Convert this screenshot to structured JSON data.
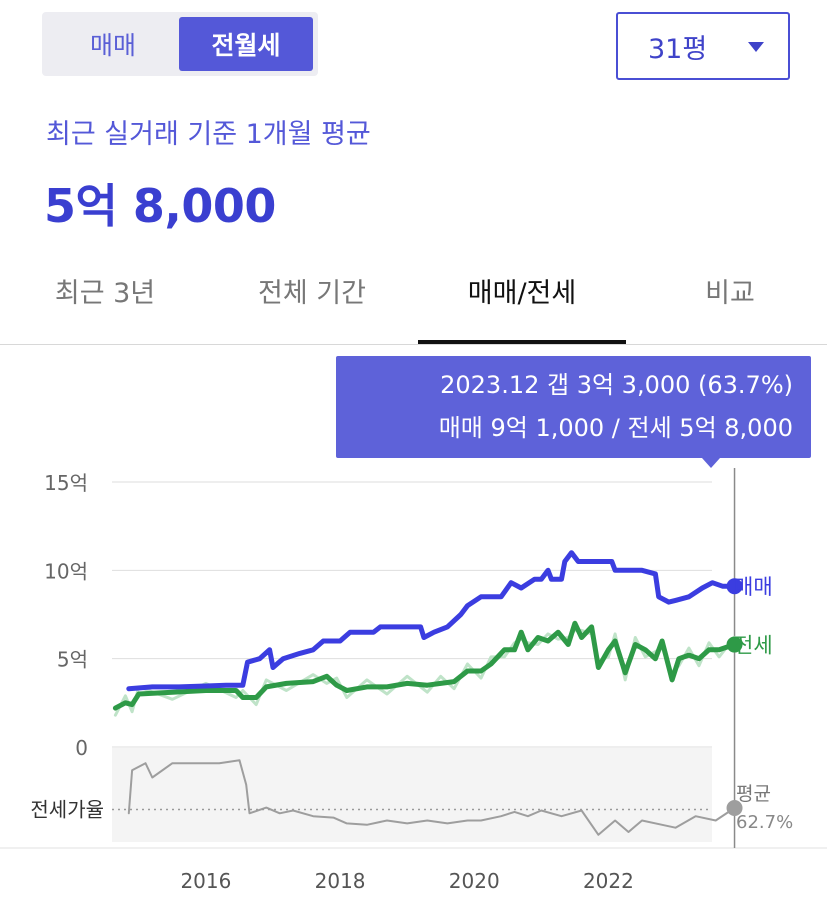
{
  "toggle": {
    "sale_label": "매매",
    "rent_label": "전월세",
    "active": "rent"
  },
  "size_select": {
    "value": "31평"
  },
  "summary": {
    "subtitle": "최근 실거래 기준 1개월 평균",
    "price": "5억 8,000"
  },
  "tabs": [
    {
      "label": "최근 3년",
      "active": false
    },
    {
      "label": "전체 기간",
      "active": false
    },
    {
      "label": "매매/전세",
      "active": true
    },
    {
      "label": "비교",
      "active": false
    }
  ],
  "tooltip": {
    "line1": "2023.12  갭 3억 3,000 (63.7%)",
    "line2": "매매 9억 1,000 / 전세 5억 8,000"
  },
  "colors": {
    "sale": "#3b3de0",
    "jeonse": "#2e9a47",
    "ratio": "#9e9e9e",
    "accent": "#5458d8"
  },
  "chart_data": {
    "type": "line",
    "x_unit": "year",
    "xlim": [
      2014.6,
      2024.2
    ],
    "ylim": [
      0,
      15
    ],
    "y_unit": "억",
    "y_ticks": [
      "0",
      "5억",
      "10억",
      "15억"
    ],
    "y_tick_values": [
      0,
      5,
      10,
      15
    ],
    "x_ticks": [
      "2016",
      "2018",
      "2020",
      "2022"
    ],
    "x_tick_values": [
      2016,
      2018,
      2020,
      2022
    ],
    "series": [
      {
        "name": "매매",
        "color": "#3b3de0",
        "points": [
          [
            2014.85,
            3.3
          ],
          [
            2015.2,
            3.4
          ],
          [
            2015.6,
            3.4
          ],
          [
            2016.0,
            3.45
          ],
          [
            2016.3,
            3.5
          ],
          [
            2016.55,
            3.5
          ],
          [
            2016.62,
            4.8
          ],
          [
            2016.8,
            5.0
          ],
          [
            2016.95,
            5.5
          ],
          [
            2017.0,
            4.5
          ],
          [
            2017.15,
            5.0
          ],
          [
            2017.4,
            5.3
          ],
          [
            2017.6,
            5.5
          ],
          [
            2017.75,
            6.0
          ],
          [
            2018.0,
            6.0
          ],
          [
            2018.15,
            6.5
          ],
          [
            2018.5,
            6.5
          ],
          [
            2018.6,
            6.8
          ],
          [
            2019.0,
            6.8
          ],
          [
            2019.2,
            6.8
          ],
          [
            2019.25,
            6.2
          ],
          [
            2019.4,
            6.5
          ],
          [
            2019.6,
            6.8
          ],
          [
            2019.8,
            7.5
          ],
          [
            2019.9,
            8.0
          ],
          [
            2020.1,
            8.5
          ],
          [
            2020.4,
            8.5
          ],
          [
            2020.55,
            9.3
          ],
          [
            2020.7,
            9.0
          ],
          [
            2020.9,
            9.5
          ],
          [
            2021.0,
            9.5
          ],
          [
            2021.1,
            10.0
          ],
          [
            2021.15,
            9.5
          ],
          [
            2021.3,
            9.5
          ],
          [
            2021.35,
            10.5
          ],
          [
            2021.45,
            11.0
          ],
          [
            2021.55,
            10.5
          ],
          [
            2021.8,
            10.5
          ],
          [
            2022.05,
            10.5
          ],
          [
            2022.1,
            10.0
          ],
          [
            2022.5,
            10.0
          ],
          [
            2022.7,
            9.8
          ],
          [
            2022.75,
            8.5
          ],
          [
            2022.9,
            8.2
          ],
          [
            2023.0,
            8.3
          ],
          [
            2023.2,
            8.5
          ],
          [
            2023.4,
            9.0
          ],
          [
            2023.55,
            9.3
          ],
          [
            2023.7,
            9.1
          ],
          [
            2023.88,
            9.1
          ]
        ],
        "last_label": "매매"
      },
      {
        "name": "전세",
        "color": "#2e9a47",
        "points": [
          [
            2014.65,
            2.2
          ],
          [
            2014.8,
            2.5
          ],
          [
            2014.9,
            2.4
          ],
          [
            2015.0,
            3.0
          ],
          [
            2015.5,
            3.1
          ],
          [
            2016.0,
            3.2
          ],
          [
            2016.45,
            3.2
          ],
          [
            2016.55,
            2.8
          ],
          [
            2016.75,
            2.8
          ],
          [
            2016.9,
            3.4
          ],
          [
            2017.2,
            3.6
          ],
          [
            2017.6,
            3.7
          ],
          [
            2017.8,
            4.0
          ],
          [
            2017.95,
            3.5
          ],
          [
            2018.1,
            3.2
          ],
          [
            2018.4,
            3.4
          ],
          [
            2018.7,
            3.4
          ],
          [
            2019.0,
            3.6
          ],
          [
            2019.3,
            3.5
          ],
          [
            2019.5,
            3.6
          ],
          [
            2019.7,
            3.7
          ],
          [
            2019.9,
            4.3
          ],
          [
            2020.1,
            4.3
          ],
          [
            2020.25,
            4.7
          ],
          [
            2020.45,
            5.5
          ],
          [
            2020.6,
            5.5
          ],
          [
            2020.7,
            6.5
          ],
          [
            2020.8,
            5.5
          ],
          [
            2020.95,
            6.2
          ],
          [
            2021.1,
            6.0
          ],
          [
            2021.25,
            6.5
          ],
          [
            2021.4,
            5.8
          ],
          [
            2021.5,
            7.0
          ],
          [
            2021.6,
            6.2
          ],
          [
            2021.75,
            6.8
          ],
          [
            2021.85,
            4.5
          ],
          [
            2022.0,
            5.5
          ],
          [
            2022.1,
            6.0
          ],
          [
            2022.25,
            4.2
          ],
          [
            2022.4,
            5.8
          ],
          [
            2022.55,
            5.5
          ],
          [
            2022.7,
            5.0
          ],
          [
            2022.8,
            6.0
          ],
          [
            2022.95,
            3.8
          ],
          [
            2023.05,
            5.0
          ],
          [
            2023.2,
            5.2
          ],
          [
            2023.35,
            5.0
          ],
          [
            2023.5,
            5.5
          ],
          [
            2023.65,
            5.5
          ],
          [
            2023.88,
            5.8
          ]
        ],
        "last_label": "전세"
      },
      {
        "name": "전세가율",
        "color": "#9e9e9e",
        "unit": "%",
        "points": [
          [
            2014.85,
            60
          ],
          [
            2014.9,
            90
          ],
          [
            2015.1,
            95
          ],
          [
            2015.2,
            85
          ],
          [
            2015.5,
            95
          ],
          [
            2016.2,
            95
          ],
          [
            2016.5,
            97
          ],
          [
            2016.6,
            80
          ],
          [
            2016.65,
            60
          ],
          [
            2016.9,
            64
          ],
          [
            2017.1,
            60
          ],
          [
            2017.3,
            62
          ],
          [
            2017.6,
            58
          ],
          [
            2017.9,
            57
          ],
          [
            2018.1,
            53
          ],
          [
            2018.4,
            52
          ],
          [
            2018.7,
            55
          ],
          [
            2019.0,
            53
          ],
          [
            2019.3,
            55
          ],
          [
            2019.6,
            53
          ],
          [
            2019.9,
            55
          ],
          [
            2020.1,
            55
          ],
          [
            2020.4,
            58
          ],
          [
            2020.6,
            61
          ],
          [
            2020.8,
            58
          ],
          [
            2021.0,
            62
          ],
          [
            2021.3,
            58
          ],
          [
            2021.6,
            62
          ],
          [
            2021.85,
            45
          ],
          [
            2022.1,
            55
          ],
          [
            2022.3,
            47
          ],
          [
            2022.5,
            55
          ],
          [
            2022.8,
            52
          ],
          [
            2023.0,
            50
          ],
          [
            2023.3,
            58
          ],
          [
            2023.6,
            55
          ],
          [
            2023.88,
            63.7
          ]
        ],
        "label": "전세가율",
        "average_label": "평균",
        "average_value": "62.7%",
        "average": 62.7
      }
    ],
    "selected_x": 2023.88
  }
}
